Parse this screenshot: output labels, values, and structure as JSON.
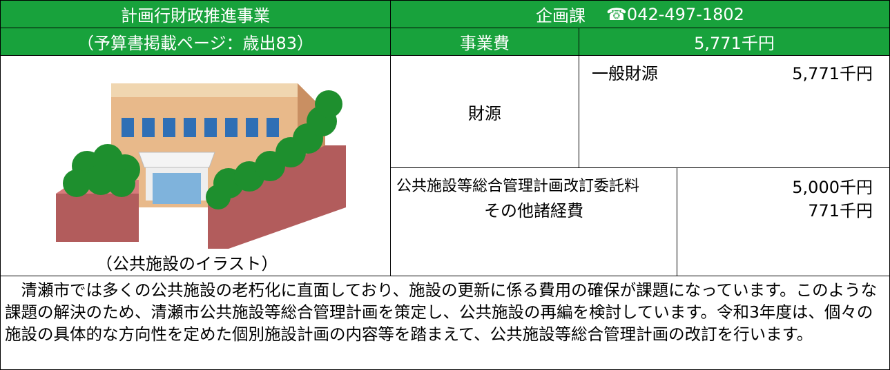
{
  "header": {
    "title": "計画行財政推進事業",
    "department": "企画課",
    "phone": "☎042-497-1802",
    "budget_page": "（予算書掲載ページ：歳出83）",
    "cost_label": "事業費",
    "cost": "5,771千円"
  },
  "illustration": {
    "caption": "（公共施設のイラスト）"
  },
  "funding": {
    "label": "財源",
    "sources": [
      {
        "name": "一般財源",
        "amount": "5,771千円"
      }
    ]
  },
  "breakdown": [
    {
      "item": "公共施設等総合管理計画改訂委託料",
      "amount": "5,000千円"
    },
    {
      "item": "その他諸経費",
      "amount": "771千円"
    }
  ],
  "description": "　清瀬市では多くの公共施設の老朽化に直面しており、施設の更新に係る費用の確保が課題になっています。このような課題の解決のため、清瀬市公共施設等総合管理計画を策定し、公共施設の再編を検討しています。令和3年度は、個々の施設の具体的な方向性を定めた個別施設計画の内容等を踏まえて、公共施設等総合管理計画の改訂を行います。"
}
